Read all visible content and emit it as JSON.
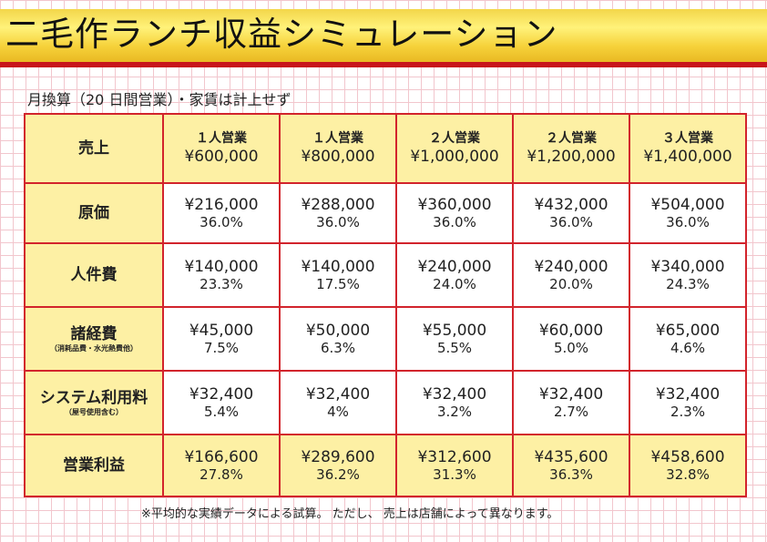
{
  "title": "二毛作ランチ収益シミュレーション",
  "subtitle": "月換算（20 日間営業）・家賃は計上せず",
  "rows": {
    "sales": {
      "label": "売上",
      "cols": [
        {
          "title": "１人営業",
          "value": "¥600,000"
        },
        {
          "title": "１人営業",
          "value": "¥800,000"
        },
        {
          "title": "２人営業",
          "value": "¥1,000,000"
        },
        {
          "title": "２人営業",
          "value": "¥1,200,000"
        },
        {
          "title": "３人営業",
          "value": "¥1,400,000"
        }
      ]
    },
    "cost": {
      "label": "原価",
      "cells": [
        {
          "amount": "¥216,000",
          "pct": "36.0%"
        },
        {
          "amount": "¥288,000",
          "pct": "36.0%"
        },
        {
          "amount": "¥360,000",
          "pct": "36.0%"
        },
        {
          "amount": "¥432,000",
          "pct": "36.0%"
        },
        {
          "amount": "¥504,000",
          "pct": "36.0%"
        }
      ]
    },
    "labor": {
      "label": "人件費",
      "cells": [
        {
          "amount": "¥140,000",
          "pct": "23.3%"
        },
        {
          "amount": "¥140,000",
          "pct": "17.5%"
        },
        {
          "amount": "¥240,000",
          "pct": "24.0%"
        },
        {
          "amount": "¥240,000",
          "pct": "20.0%"
        },
        {
          "amount": "¥340,000",
          "pct": "24.3%"
        }
      ]
    },
    "misc": {
      "label": "諸経費",
      "sublabel": "（消耗品費・水光熱費他）",
      "cells": [
        {
          "amount": "¥45,000",
          "pct": "7.5%"
        },
        {
          "amount": "¥50,000",
          "pct": "6.3%"
        },
        {
          "amount": "¥55,000",
          "pct": "5.5%"
        },
        {
          "amount": "¥60,000",
          "pct": "5.0%"
        },
        {
          "amount": "¥65,000",
          "pct": "4.6%"
        }
      ]
    },
    "system": {
      "label": "システム利用料",
      "sublabel": "（屋号使用含む）",
      "cells": [
        {
          "amount": "¥32,400",
          "pct": "5.4%"
        },
        {
          "amount": "¥32,400",
          "pct": "4%"
        },
        {
          "amount": "¥32,400",
          "pct": "3.2%"
        },
        {
          "amount": "¥32,400",
          "pct": "2.7%"
        },
        {
          "amount": "¥32,400",
          "pct": "2.3%"
        }
      ]
    },
    "profit": {
      "label": "営業利益",
      "cells": [
        {
          "amount": "¥166,600",
          "pct": "27.8%"
        },
        {
          "amount": "¥289,600",
          "pct": "36.2%"
        },
        {
          "amount": "¥312,600",
          "pct": "31.3%"
        },
        {
          "amount": "¥435,600",
          "pct": "36.3%"
        },
        {
          "amount": "¥458,600",
          "pct": "32.8%"
        }
      ]
    }
  },
  "footnote": "※平均的な実績データによる試算。 ただし、 売上は店舗によって異なります。",
  "colors": {
    "grid_line": "#f2c6cd",
    "table_border": "#d2242c",
    "highlight": "#fdf0a4",
    "title_band": "#f6d23a",
    "title_underline": "#c8141b"
  }
}
